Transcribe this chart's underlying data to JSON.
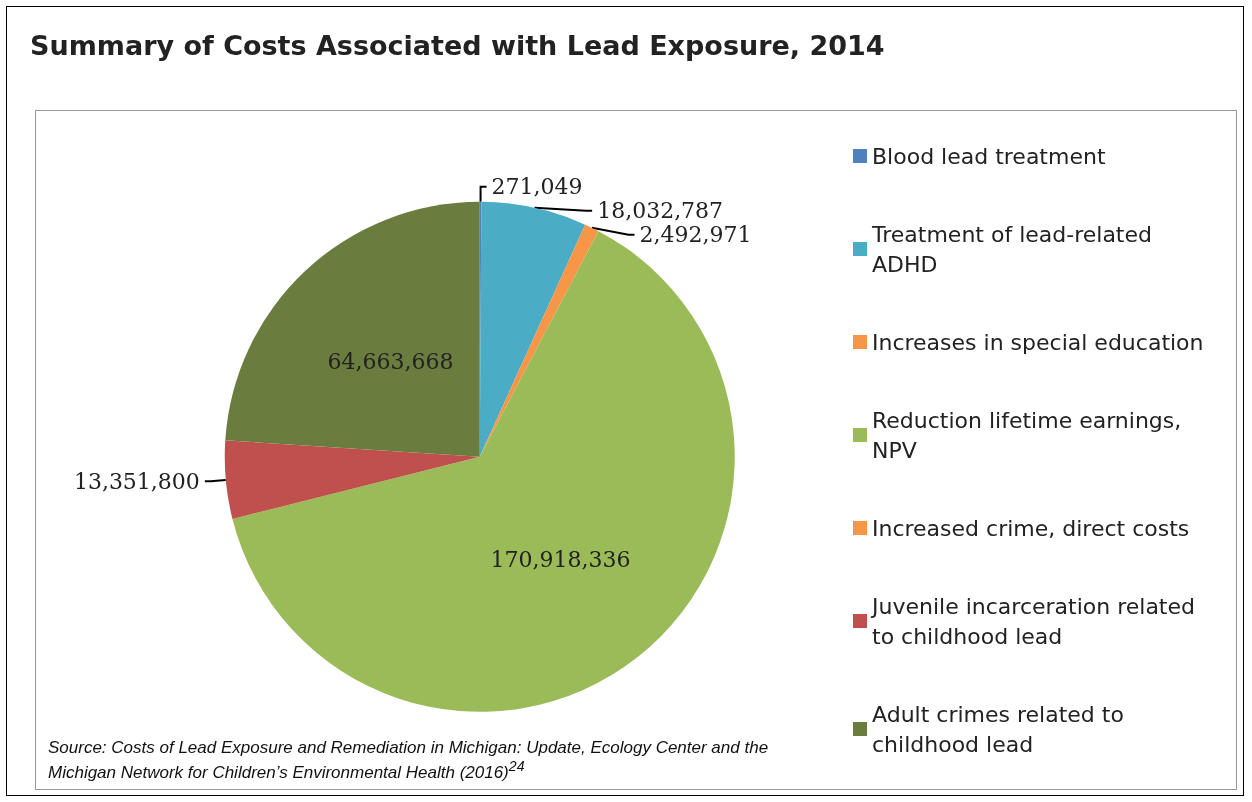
{
  "chart_data": {
    "type": "pie",
    "title": "Summary of Costs Associated with Lead Exposure, 2014",
    "categories": [
      "Blood lead treatment",
      "Treatment of lead-related ADHD",
      "Increases in special education",
      "Reduction lifetime earnings, NPV",
      "Increased crime, direct costs",
      "Juvenile incarceration related to childhood lead",
      "Adult crimes related to childhood lead"
    ],
    "values": [
      271049,
      18032787,
      2492971,
      170918336,
      null,
      13351800,
      64663668
    ],
    "colors": [
      "#4f81bd",
      "#4bacc6",
      "#f79646",
      "#9bbb59",
      "#f79646",
      "#c0504d",
      "#6b7c3f"
    ],
    "value_labels": [
      "271,049",
      "18,032,787",
      "2,492,971",
      "170,918,336",
      null,
      "13,351,800",
      "64,663,668"
    ],
    "legend": "right",
    "annotations": [
      "Source: Costs of Lead Exposure and Remediation in Michigan: Update, Ecology Center and the Michigan Network for Children’s Environmental Health (2016)$^{24}$"
    ]
  }
}
